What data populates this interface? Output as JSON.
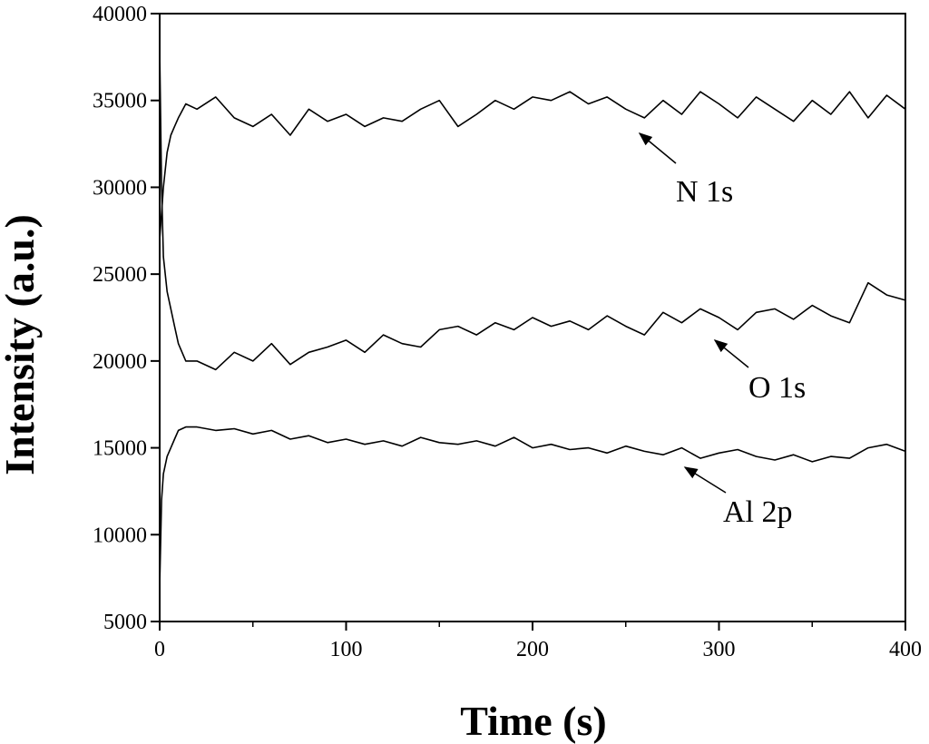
{
  "chart_data": {
    "type": "line",
    "xlabel": "Time (s)",
    "ylabel": "Intensity (a.u.)",
    "xlim": [
      0,
      400
    ],
    "ylim": [
      5000,
      40000
    ],
    "xticks": [
      0,
      100,
      200,
      300,
      400
    ],
    "xticks_minor": [
      50,
      150,
      250,
      350
    ],
    "yticks": [
      5000,
      10000,
      15000,
      20000,
      25000,
      30000,
      35000,
      40000
    ],
    "x": [
      0,
      1,
      2,
      4,
      6,
      8,
      10,
      14,
      20,
      30,
      40,
      50,
      60,
      70,
      80,
      90,
      100,
      110,
      120,
      130,
      140,
      150,
      160,
      170,
      180,
      190,
      200,
      210,
      220,
      230,
      240,
      250,
      260,
      270,
      280,
      290,
      300,
      310,
      320,
      330,
      340,
      350,
      360,
      370,
      380,
      390,
      400
    ],
    "series": [
      {
        "name": "N 1s",
        "color": "#000000",
        "values": [
          27000,
          28500,
          30000,
          32000,
          33000,
          33500,
          34000,
          34800,
          34500,
          35200,
          34000,
          33500,
          34200,
          33000,
          34500,
          33800,
          34200,
          33500,
          34000,
          33800,
          34500,
          35000,
          33500,
          34200,
          35000,
          34500,
          35200,
          35000,
          35500,
          34800,
          35200,
          34500,
          34000,
          35000,
          34200,
          35500,
          34800,
          34000,
          35200,
          34500,
          33800,
          35000,
          34200,
          35500,
          34000,
          35300,
          34500
        ]
      },
      {
        "name": "O 1s",
        "color": "#000000",
        "values": [
          38000,
          30000,
          26000,
          24000,
          23000,
          22000,
          21000,
          20000,
          20000,
          19500,
          20500,
          20000,
          21000,
          19800,
          20500,
          20800,
          21200,
          20500,
          21500,
          21000,
          20800,
          21800,
          22000,
          21500,
          22200,
          21800,
          22500,
          22000,
          22300,
          21800,
          22600,
          22000,
          21500,
          22800,
          22200,
          23000,
          22500,
          21800,
          22800,
          23000,
          22400,
          23200,
          22600,
          22200,
          24500,
          23800,
          23500
        ]
      },
      {
        "name": "Al 2p",
        "color": "#000000",
        "values": [
          7000,
          12000,
          13500,
          14500,
          15000,
          15500,
          16000,
          16200,
          16200,
          16000,
          16100,
          15800,
          16000,
          15500,
          15700,
          15300,
          15500,
          15200,
          15400,
          15100,
          15600,
          15300,
          15200,
          15400,
          15100,
          15600,
          15000,
          15200,
          14900,
          15000,
          14700,
          15100,
          14800,
          14600,
          15000,
          14400,
          14700,
          14900,
          14500,
          14300,
          14600,
          14200,
          14500,
          14400,
          15000,
          15200,
          14800
        ]
      }
    ],
    "annotations": [
      "N 1s",
      "O 1s",
      "Al 2p"
    ]
  }
}
